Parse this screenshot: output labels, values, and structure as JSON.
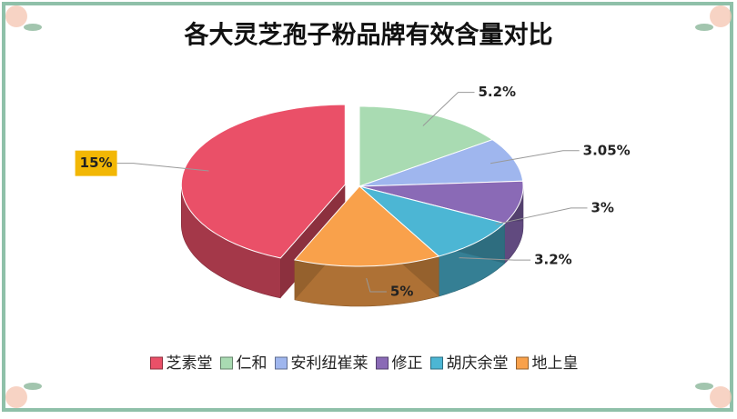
{
  "chart_data": {
    "type": "pie",
    "title": "各大灵芝孢子粉品牌有效含量对比",
    "categories": [
      "芝素堂",
      "仁和",
      "安利纽崔莱",
      "修正",
      "胡庆余堂",
      "地上皇"
    ],
    "values": [
      15,
      5.2,
      3.05,
      3,
      3.2,
      5
    ],
    "value_labels": [
      "15%",
      "5.2%",
      "3.05%",
      "3%",
      "3.2%",
      "5%"
    ],
    "colors": [
      "#ea5068",
      "#a9dbb2",
      "#9fb6ee",
      "#8a6ab6",
      "#4cb6d4",
      "#f9a14b"
    ]
  }
}
